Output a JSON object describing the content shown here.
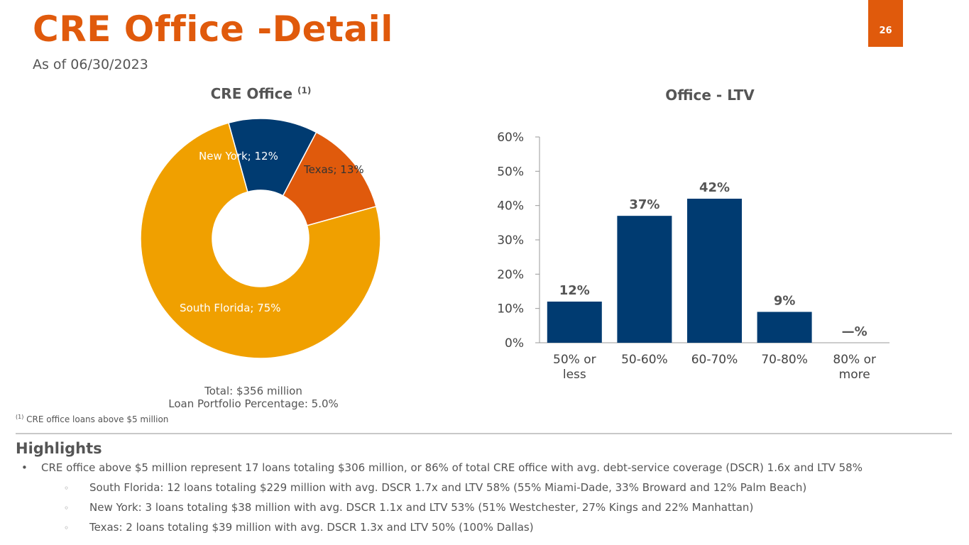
{
  "header": {
    "title": "CRE Office -Detail",
    "subtitle": "As of 06/30/2023",
    "page_number": "26"
  },
  "left_chart": {
    "title": "CRE Office",
    "title_superscript": "(1)",
    "totals_line1": "Total: $356 million",
    "totals_line2": "Loan Portfolio Percentage: 5.0%"
  },
  "footnote": {
    "marker": "(1)",
    "text": "CRE office loans above $5 million"
  },
  "highlights": {
    "title": "Highlights",
    "main_bullet": "CRE office above $5 million represent 17 loans totaling $306 million, or 86% of total CRE office with avg. debt-service coverage (DSCR) 1.6x and LTV 58%",
    "sub_bullets": [
      "South Florida: 12 loans totaling $229 million  with avg. DSCR 1.7x and LTV 58% (55% Miami-Dade, 33% Broward and 12% Palm Beach)",
      "New York: 3 loans totaling $38 million with avg. DSCR 1.1x and LTV 53% (51% Westchester, 27% Kings and 22% Manhattan)",
      "Texas: 2 loans totaling $39 million with avg. DSCR 1.3x and LTV 50% (100% Dallas)"
    ]
  },
  "colors": {
    "accent": "#e05a0c",
    "navy": "#003b71",
    "gold": "#f0a000"
  },
  "chart_data": [
    {
      "type": "pie",
      "title": "CRE Office (1)",
      "slices": [
        {
          "label": "New York; 12%",
          "name": "New York",
          "value": 12,
          "color": "#003b71"
        },
        {
          "label": "Texas; 13%",
          "name": "Texas",
          "value": 13,
          "color": "#e05a0c"
        },
        {
          "label": "South Florida; 75%",
          "name": "South Florida",
          "value": 75,
          "color": "#f0a000"
        }
      ]
    },
    {
      "type": "bar",
      "title": "Office - LTV",
      "categories": [
        [
          "50% or",
          "less"
        ],
        [
          "50-60%"
        ],
        [
          "60-70%"
        ],
        [
          "70-80%"
        ],
        [
          "80% or",
          "more"
        ]
      ],
      "values": [
        12,
        37,
        42,
        9,
        0
      ],
      "data_labels": [
        "12%",
        "37%",
        "42%",
        "9%",
        "—%"
      ],
      "yticks": [
        "0%",
        "10%",
        "20%",
        "30%",
        "40%",
        "50%",
        "60%"
      ],
      "ylim": [
        0,
        60
      ],
      "color": "#003b71",
      "grid": false
    }
  ]
}
